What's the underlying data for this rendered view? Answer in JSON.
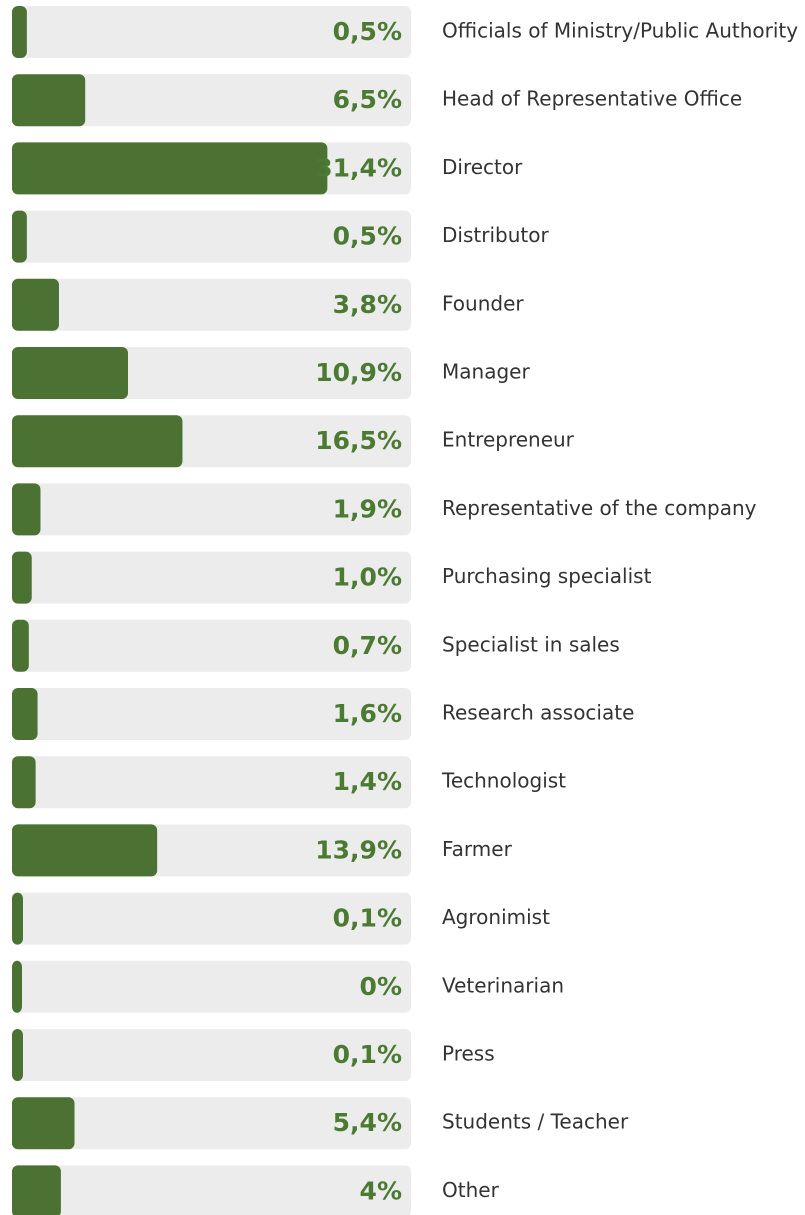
{
  "chart_data": {
    "type": "bar",
    "orientation": "horizontal",
    "categories": [
      "Officials of Ministry/Public Authority",
      "Head of Representative Office",
      "Director",
      "Distributor",
      "Founder",
      "Manager",
      "Entrepreneur",
      "Representative of the company",
      "Purchasing specialist",
      "Specialist in sales",
      "Research associate",
      "Technologist",
      "Farmer",
      "Agronimist",
      "Veterinarian",
      "Press",
      "Students / Teacher",
      "Other"
    ],
    "values": [
      0.5,
      6.5,
      31.4,
      0.5,
      3.8,
      10.9,
      16.5,
      1.9,
      1.0,
      0.7,
      1.6,
      1.4,
      13.9,
      0.1,
      0,
      0.1,
      5.4,
      4
    ],
    "value_labels": [
      "0,5%",
      "6,5%",
      "31,4%",
      "0,5%",
      "3,8%",
      "10,9%",
      "16,5%",
      "1,9%",
      "1,0%",
      "0,7%",
      "1,6%",
      "1,4%",
      "13,9%",
      "0,1%",
      "0%",
      "0,1%",
      "5,4%",
      "4%"
    ],
    "color": "#4b7133",
    "track_color": "#ececec",
    "xlim": [
      0,
      40
    ]
  }
}
